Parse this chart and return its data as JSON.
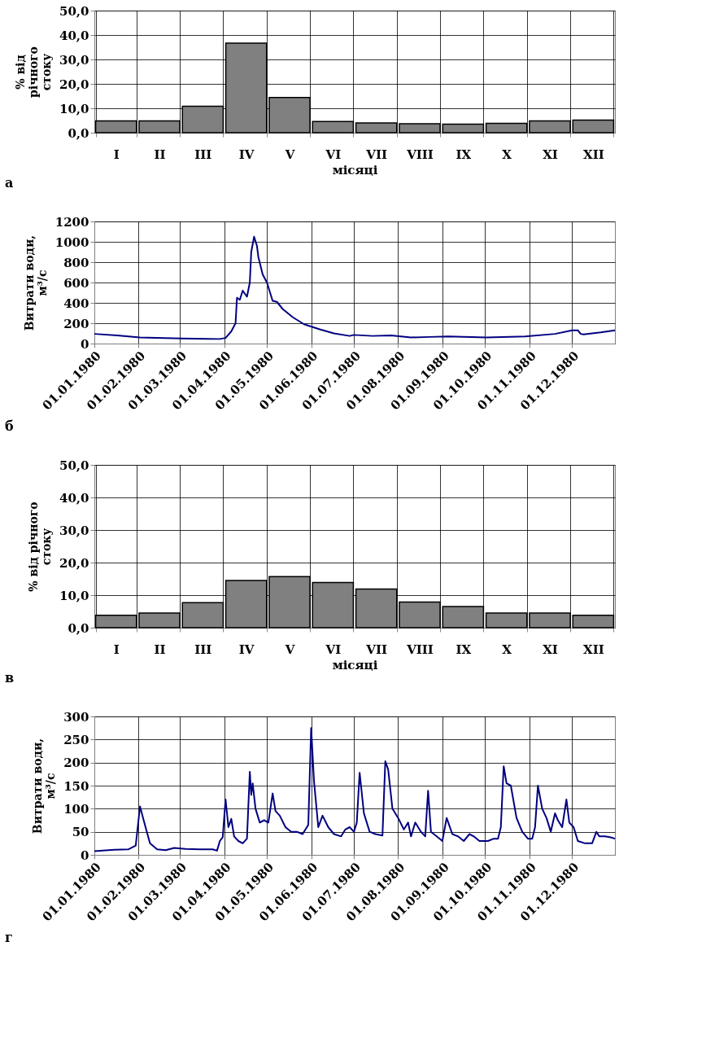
{
  "chart_data": [
    {
      "type": "bar",
      "categories": [
        "I",
        "II",
        "III",
        "IV",
        "V",
        "VI",
        "VII",
        "VIII",
        "IX",
        "X",
        "XI",
        "XII"
      ],
      "values": [
        4.8,
        4.8,
        10.8,
        36.7,
        14.4,
        4.6,
        4.0,
        3.7,
        3.5,
        3.8,
        4.8,
        5.2
      ],
      "color": "#808080",
      "ylabel": "% від річного стоку",
      "xlabel": "місяці",
      "ylim": [
        0,
        50
      ],
      "yticks": [
        {
          "value": 0,
          "label": "0,0"
        },
        {
          "value": 10,
          "label": "10,0"
        },
        {
          "value": 20,
          "label": "20,0"
        },
        {
          "value": 30,
          "label": "30,0"
        },
        {
          "value": 40,
          "label": "40,0"
        },
        {
          "value": 50,
          "label": "50,0"
        }
      ],
      "grid": true,
      "annotations": [
        "а"
      ]
    },
    {
      "type": "line",
      "color": "#000080",
      "ylabel": "Витрати води, м³/с",
      "x": [
        "1980-01-01",
        "1980-01-17",
        "1980-02-02",
        "1980-03-02",
        "1980-03-29",
        "1980-04-02",
        "1980-04-06",
        "1980-04-09",
        "1980-04-10",
        "1980-04-12",
        "1980-04-14",
        "1980-04-15",
        "1980-04-17",
        "1980-04-19",
        "1980-04-20",
        "1980-04-22",
        "1980-04-24",
        "1980-04-25",
        "1980-04-28",
        "1980-05-01",
        "1980-05-05",
        "1980-05-08",
        "1980-05-12",
        "1980-05-19",
        "1980-05-27",
        "1980-06-07",
        "1980-06-17",
        "1980-06-28",
        "1980-07-01",
        "1980-07-14",
        "1980-07-27",
        "1980-08-10",
        "1980-08-23",
        "1980-09-05",
        "1980-10-02",
        "1980-10-29",
        "1980-11-19",
        "1980-12-01",
        "1980-12-05",
        "1980-12-07",
        "1980-12-09",
        "1980-12-21",
        "1980-12-31"
      ],
      "values": [
        95,
        80,
        60,
        50,
        45,
        55,
        120,
        200,
        450,
        430,
        520,
        500,
        460,
        600,
        900,
        1050,
        960,
        850,
        680,
        600,
        420,
        410,
        340,
        260,
        190,
        140,
        100,
        75,
        85,
        75,
        80,
        60,
        65,
        70,
        60,
        70,
        95,
        130,
        130,
        95,
        90,
        110,
        130
      ],
      "xlim": [
        "1980-01-01",
        "1980-12-31"
      ],
      "xticks": [
        {
          "value": "1980-01-01",
          "label": "01.01.1980"
        },
        {
          "value": "1980-02-01",
          "label": "01.02.1980"
        },
        {
          "value": "1980-03-01",
          "label": "01.03.1980"
        },
        {
          "value": "1980-04-01",
          "label": "01.04.1980"
        },
        {
          "value": "1980-05-01",
          "label": "01.05.1980"
        },
        {
          "value": "1980-06-01",
          "label": "01.06.1980"
        },
        {
          "value": "1980-07-01",
          "label": "01.07.1980"
        },
        {
          "value": "1980-08-01",
          "label": "01.08.1980"
        },
        {
          "value": "1980-09-01",
          "label": "01.09.1980"
        },
        {
          "value": "1980-10-01",
          "label": "01.10.1980"
        },
        {
          "value": "1980-11-01",
          "label": "01.11.1980"
        },
        {
          "value": "1980-12-01",
          "label": "01.12.1980"
        }
      ],
      "ylim": [
        0,
        1200
      ],
      "yticks": [
        0,
        200,
        400,
        600,
        800,
        1000,
        1200
      ],
      "grid": true,
      "annotations": [
        "б"
      ]
    },
    {
      "type": "bar",
      "categories": [
        "I",
        "II",
        "III",
        "IV",
        "V",
        "VI",
        "VII",
        "VIII",
        "IX",
        "X",
        "XI",
        "XII"
      ],
      "values": [
        3.8,
        4.5,
        7.7,
        14.5,
        15.7,
        13.9,
        11.9,
        7.9,
        6.5,
        4.5,
        4.5,
        3.8
      ],
      "color": "#808080",
      "ylabel": "% від річного стоку",
      "xlabel": "місяці",
      "ylim": [
        0,
        50
      ],
      "yticks": [
        {
          "value": 0,
          "label": "0,0"
        },
        {
          "value": 10,
          "label": "10,0"
        },
        {
          "value": 20,
          "label": "20,0"
        },
        {
          "value": 30,
          "label": "30,0"
        },
        {
          "value": 40,
          "label": "40,0"
        },
        {
          "value": 50,
          "label": "50,0"
        }
      ],
      "grid": true,
      "annotations": [
        "в"
      ]
    },
    {
      "type": "line",
      "color": "#000080",
      "ylabel": "Витрати води, м³/с",
      "x": [
        "1980-01-01",
        "1980-01-15",
        "1980-01-25",
        "1980-01-30",
        "1980-02-02",
        "1980-02-05",
        "1980-02-09",
        "1980-02-14",
        "1980-02-20",
        "1980-02-26",
        "1980-03-05",
        "1980-03-15",
        "1980-03-24",
        "1980-03-27",
        "1980-03-29",
        "1980-03-31",
        "1980-04-02",
        "1980-04-04",
        "1980-04-06",
        "1980-04-08",
        "1980-04-11",
        "1980-04-14",
        "1980-04-17",
        "1980-04-19",
        "1980-04-20",
        "1980-04-21",
        "1980-04-23",
        "1980-04-26",
        "1980-04-29",
        "1980-05-02",
        "1980-05-05",
        "1980-05-07",
        "1980-05-10",
        "1980-05-14",
        "1980-05-18",
        "1980-05-22",
        "1980-05-26",
        "1980-05-30",
        "1980-06-01",
        "1980-06-03",
        "1980-06-06",
        "1980-06-09",
        "1980-06-13",
        "1980-06-17",
        "1980-06-22",
        "1980-06-25",
        "1980-06-28",
        "1980-07-01",
        "1980-07-03",
        "1980-07-05",
        "1980-07-08",
        "1980-07-12",
        "1980-07-16",
        "1980-07-21",
        "1980-07-23",
        "1980-07-25",
        "1980-07-28",
        "1980-08-01",
        "1980-08-05",
        "1980-08-08",
        "1980-08-10",
        "1980-08-13",
        "1980-08-17",
        "1980-08-20",
        "1980-08-22",
        "1980-08-24",
        "1980-08-28",
        "1980-09-01",
        "1980-09-04",
        "1980-09-08",
        "1980-09-12",
        "1980-09-16",
        "1980-09-20",
        "1980-09-23",
        "1980-09-27",
        "1980-10-03",
        "1980-10-07",
        "1980-10-10",
        "1980-10-12",
        "1980-10-14",
        "1980-10-16",
        "1980-10-19",
        "1980-10-23",
        "1980-10-27",
        "1980-10-31",
        "1980-11-03",
        "1980-11-05",
        "1980-11-07",
        "1980-11-10",
        "1980-11-13",
        "1980-11-16",
        "1980-11-19",
        "1980-11-21",
        "1980-11-24",
        "1980-11-27",
        "1980-11-29",
        "1980-12-02",
        "1980-12-05",
        "1980-12-10",
        "1980-12-15",
        "1980-12-18",
        "1980-12-20",
        "1980-12-24",
        "1980-12-28",
        "1980-12-31"
      ],
      "values": [
        8,
        11,
        12,
        20,
        105,
        70,
        25,
        12,
        10,
        15,
        13,
        12,
        12,
        9,
        30,
        38,
        120,
        60,
        78,
        40,
        30,
        25,
        35,
        180,
        130,
        155,
        100,
        70,
        75,
        70,
        133,
        95,
        85,
        60,
        50,
        50,
        45,
        65,
        275,
        160,
        60,
        85,
        60,
        45,
        40,
        55,
        60,
        50,
        70,
        178,
        90,
        50,
        45,
        42,
        203,
        185,
        100,
        80,
        55,
        70,
        40,
        70,
        50,
        40,
        139,
        50,
        40,
        30,
        80,
        45,
        40,
        30,
        45,
        40,
        30,
        30,
        35,
        35,
        60,
        192,
        155,
        150,
        80,
        50,
        35,
        35,
        60,
        150,
        100,
        80,
        50,
        90,
        75,
        60,
        120,
        70,
        60,
        30,
        25,
        25,
        50,
        40,
        40,
        38,
        35
      ],
      "xlim": [
        "1980-01-01",
        "1980-12-31"
      ],
      "xticks": [
        {
          "value": "1980-01-01",
          "label": "01.01.1980"
        },
        {
          "value": "1980-02-01",
          "label": "01.02.1980"
        },
        {
          "value": "1980-03-01",
          "label": "01.03.1980"
        },
        {
          "value": "1980-04-01",
          "label": "01.04.1980"
        },
        {
          "value": "1980-05-01",
          "label": "01.05.1980"
        },
        {
          "value": "1980-06-01",
          "label": "01.06.1980"
        },
        {
          "value": "1980-07-01",
          "label": "01.07.1980"
        },
        {
          "value": "1980-08-01",
          "label": "01.08.1980"
        },
        {
          "value": "1980-09-01",
          "label": "01.09.1980"
        },
        {
          "value": "1980-10-01",
          "label": "01.10.1980"
        },
        {
          "value": "1980-11-01",
          "label": "01.11.1980"
        },
        {
          "value": "1980-12-01",
          "label": "01.12.1980"
        }
      ],
      "ylim": [
        0,
        300
      ],
      "yticks": [
        0,
        50,
        100,
        150,
        200,
        250,
        300
      ],
      "grid": true,
      "annotations": [
        "г"
      ]
    }
  ]
}
